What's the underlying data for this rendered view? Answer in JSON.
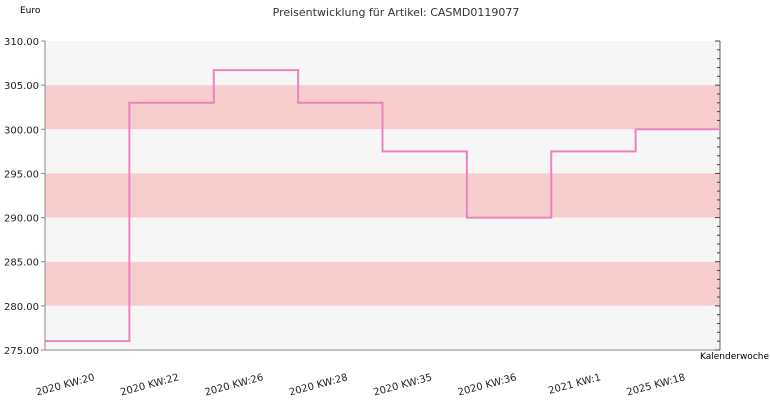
{
  "chart_data": {
    "type": "line",
    "step": true,
    "title": "Preisentwicklung für Artikel: CASMD0119077",
    "ylabel": "Euro",
    "xlabel": "Kalenderwoche",
    "ylim": [
      275,
      310
    ],
    "yticks": [
      "310.00",
      "305.00",
      "300.00",
      "295.00",
      "290.00",
      "285.00",
      "280.00",
      "275.00"
    ],
    "categories": [
      "2020 KW:20",
      "2020 KW:22",
      "2020 KW:26",
      "2020 KW:28",
      "2020 KW:35",
      "2020 KW:36",
      "2021 KW:1",
      "2025 KW:18"
    ],
    "series": [
      {
        "values": [
          276.0,
          303.0,
          306.7,
          303.0,
          297.5,
          290.0,
          297.5,
          300.0
        ]
      }
    ],
    "colors": {
      "line": "#ee82bf",
      "band_light": "#f6f6f6",
      "band_pink": "#f8cdcd",
      "axis": "#888888"
    },
    "grid": false,
    "legend": "none"
  }
}
